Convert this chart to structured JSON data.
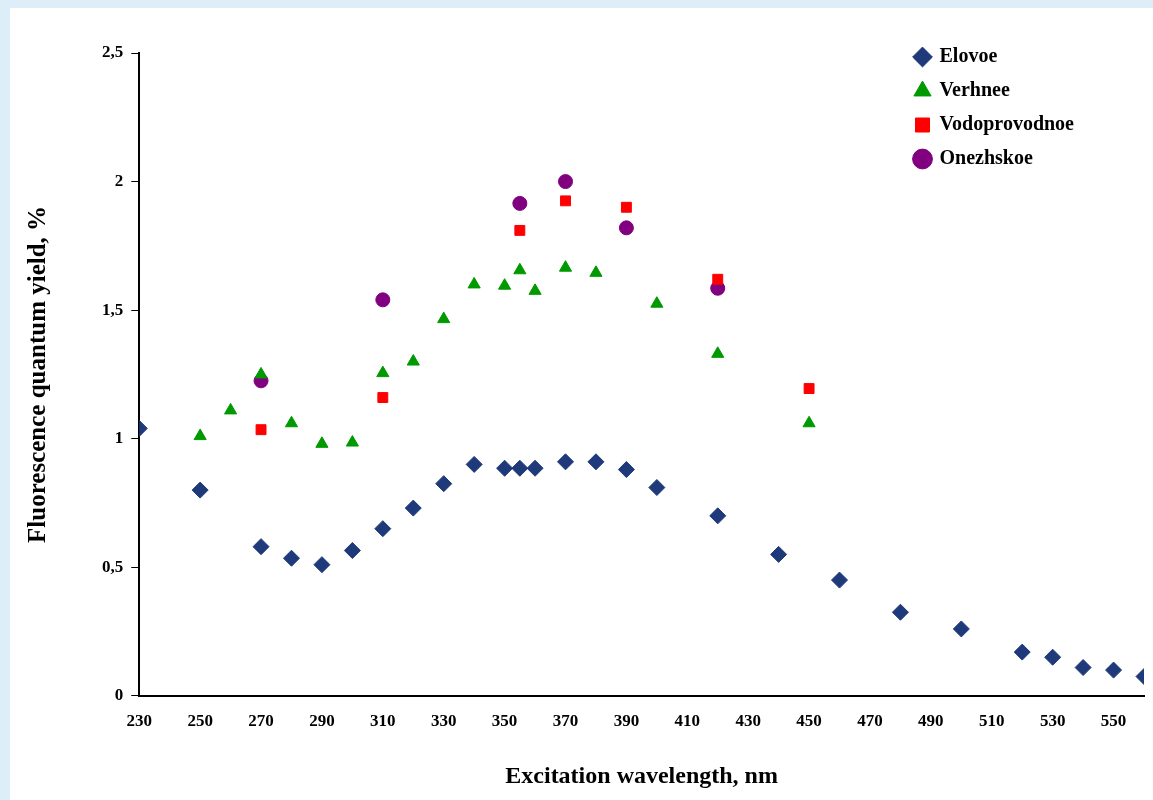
{
  "chart_data": {
    "type": "scatter",
    "xlabel": "Excitation wavelength, nm",
    "ylabel": "Fluorescence quantum yield, %",
    "xlim": [
      230,
      560
    ],
    "xticks": [
      230,
      250,
      270,
      290,
      310,
      330,
      350,
      370,
      390,
      410,
      430,
      450,
      470,
      490,
      510,
      530,
      550
    ],
    "ylim": [
      0,
      2.5
    ],
    "yticks": [
      0,
      {
        "value": 0.5,
        "label": "0,5"
      },
      1,
      {
        "value": 1.5,
        "label": "1,5"
      },
      2,
      {
        "value": 2.5,
        "label": "2,5"
      }
    ],
    "grid": false,
    "legend": "top right",
    "series": [
      {
        "name": "Elovoe",
        "color": "#1f3a7a",
        "marker": "diamond",
        "x": [
          230,
          250,
          270,
          280,
          290,
          300,
          310,
          320,
          330,
          340,
          350,
          355,
          360,
          370,
          380,
          390,
          400,
          420,
          440,
          460,
          480,
          500,
          520,
          530,
          540,
          550,
          560
        ],
        "values": [
          1.04,
          0.8,
          0.58,
          0.535,
          0.51,
          0.565,
          0.65,
          0.73,
          0.825,
          0.9,
          0.885,
          0.885,
          0.885,
          0.91,
          0.91,
          0.88,
          0.81,
          0.7,
          0.55,
          0.45,
          0.325,
          0.26,
          0.17,
          0.15,
          0.11,
          0.1,
          0.075
        ]
      },
      {
        "name": "Verhnee",
        "color": "#009900",
        "marker": "triangle",
        "x": [
          250,
          260,
          270,
          280,
          290,
          300,
          310,
          320,
          330,
          340,
          350,
          355,
          360,
          370,
          380,
          400,
          420,
          450
        ],
        "values": [
          1.01,
          1.11,
          1.25,
          1.06,
          0.98,
          0.985,
          1.255,
          1.3,
          1.465,
          1.6,
          1.595,
          1.655,
          1.575,
          1.665,
          1.645,
          1.525,
          1.33,
          1.06
        ]
      },
      {
        "name": "Vodoprovodnoe",
        "color": "#ff0000",
        "marker": "square",
        "x": [
          270,
          310,
          355,
          370,
          390,
          420,
          450
        ],
        "values": [
          1.035,
          1.16,
          1.81,
          1.925,
          1.9,
          1.62,
          1.195
        ]
      },
      {
        "name": "Onezhskoe",
        "color": "#800080",
        "marker": "circle",
        "x": [
          270,
          310,
          355,
          370,
          390,
          420
        ],
        "values": [
          1.225,
          1.54,
          1.915,
          2.0,
          1.82,
          1.585
        ]
      }
    ]
  }
}
